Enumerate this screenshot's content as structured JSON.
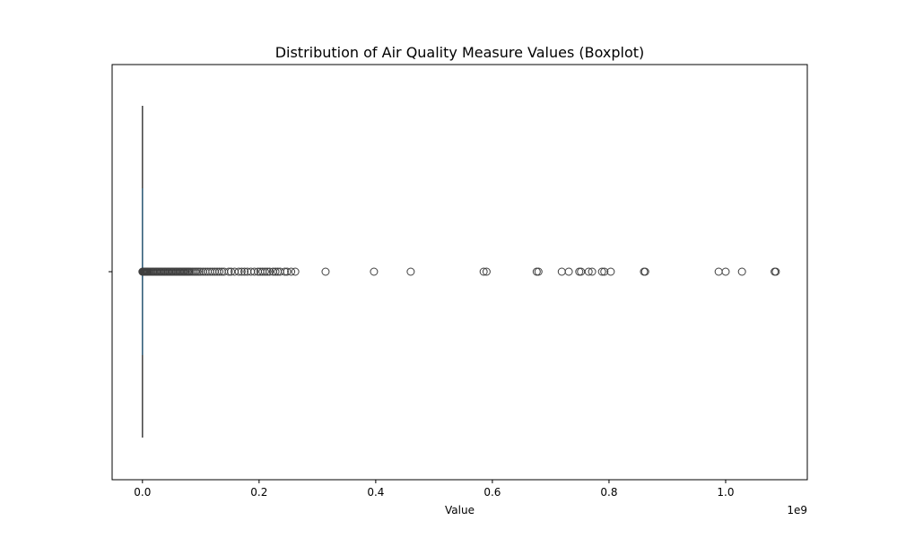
{
  "chart_data": {
    "type": "box",
    "title": "Distribution of Air Quality Measure Values (Boxplot)",
    "xlabel": "Value",
    "ylabel": "",
    "x_scale_label": "1e9",
    "x_ticks": [
      0.0,
      0.2,
      0.4,
      0.6,
      0.8,
      1.0
    ],
    "x_tick_labels": [
      "0.0",
      "0.2",
      "0.4",
      "0.6",
      "0.8",
      "1.0"
    ],
    "x_scale_factor": 1000000000,
    "xlim": [
      -0.052,
      1.14
    ],
    "orientation": "horizontal",
    "grid": false,
    "box": {
      "min": 0.0,
      "q1": 0.0,
      "median": 0.0,
      "q3": 0.0,
      "max": 0.0,
      "whisker_low": 0.0,
      "whisker_high": 0.0
    },
    "outliers": [
      0.0,
      0.001,
      0.002,
      0.003,
      0.004,
      0.005,
      0.006,
      0.007,
      0.008,
      0.009,
      0.01,
      0.012,
      0.014,
      0.016,
      0.018,
      0.02,
      0.022,
      0.024,
      0.026,
      0.028,
      0.03,
      0.032,
      0.034,
      0.036,
      0.038,
      0.04,
      0.042,
      0.044,
      0.046,
      0.048,
      0.05,
      0.052,
      0.054,
      0.056,
      0.058,
      0.06,
      0.062,
      0.064,
      0.066,
      0.068,
      0.07,
      0.072,
      0.074,
      0.076,
      0.078,
      0.08,
      0.082,
      0.085,
      0.088,
      0.091,
      0.094,
      0.097,
      0.1,
      0.104,
      0.108,
      0.112,
      0.116,
      0.12,
      0.124,
      0.128,
      0.132,
      0.136,
      0.14,
      0.148,
      0.152,
      0.158,
      0.165,
      0.17,
      0.175,
      0.18,
      0.186,
      0.192,
      0.198,
      0.202,
      0.206,
      0.21,
      0.214,
      0.218,
      0.224,
      0.228,
      0.232,
      0.236,
      0.244,
      0.248,
      0.255,
      0.262,
      0.314,
      0.397,
      0.46,
      0.585,
      0.59,
      0.676,
      0.679,
      0.719,
      0.731,
      0.749,
      0.752,
      0.765,
      0.771,
      0.788,
      0.792,
      0.803,
      0.86,
      0.862,
      0.988,
      1.0,
      1.028,
      1.084,
      1.086
    ],
    "box_color": "#1f77b4"
  }
}
